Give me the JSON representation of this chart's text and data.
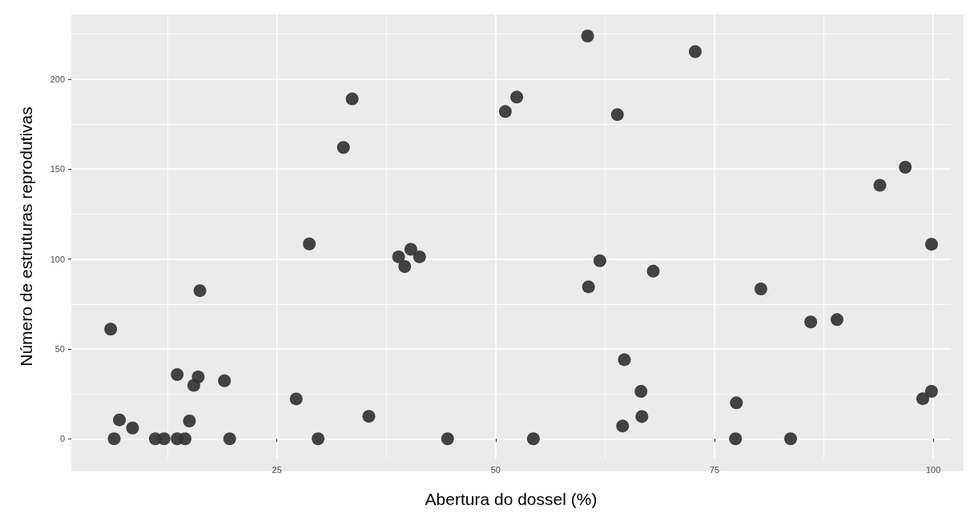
{
  "chart_data": {
    "type": "scatter",
    "xlabel": "Abertura do dossel (%)",
    "ylabel": "Número de estruturas reprodutivas",
    "xlim": [
      1.5,
      102
    ],
    "ylim": [
      -11,
      236
    ],
    "xticks": [
      25,
      50,
      75,
      100
    ],
    "yticks": [
      0,
      50,
      100,
      150,
      200
    ],
    "grid": true,
    "marker": "circle",
    "series": [
      {
        "color": "#333333",
        "x": [
          6.0,
          6.4,
          7.0,
          8.5,
          11.1,
          12.1,
          13.6,
          14.5,
          13.6,
          16.0,
          15.5,
          15.0,
          16.2,
          19.0,
          19.6,
          27.2,
          29.7,
          35.5,
          44.5,
          39.6,
          38.9,
          41.3,
          33.6,
          32.6,
          28.7,
          40.3,
          60.5,
          72.8,
          52.4,
          51.1,
          63.9,
          96.8,
          93.9,
          99.8,
          61.9,
          68.0,
          60.6,
          80.3,
          86.0,
          89.0,
          64.7,
          66.6,
          66.7,
          64.5,
          54.3,
          77.4,
          83.7,
          77.5,
          98.8,
          99.8
        ],
        "values": [
          61,
          0,
          10.5,
          6,
          0,
          0,
          0,
          0,
          35.7,
          34.4,
          29.7,
          9.9,
          82.4,
          32.3,
          0,
          22.2,
          0,
          12.5,
          0,
          95.8,
          101.2,
          101.2,
          189,
          162,
          108.4,
          105.4,
          224,
          215.3,
          190,
          182,
          180.3,
          151,
          141,
          108.2,
          99,
          93.2,
          84.5,
          83.3,
          65,
          66.3,
          44,
          26.4,
          12.4,
          7.1,
          0,
          0,
          0,
          20,
          22.3,
          26.4
        ]
      }
    ]
  }
}
